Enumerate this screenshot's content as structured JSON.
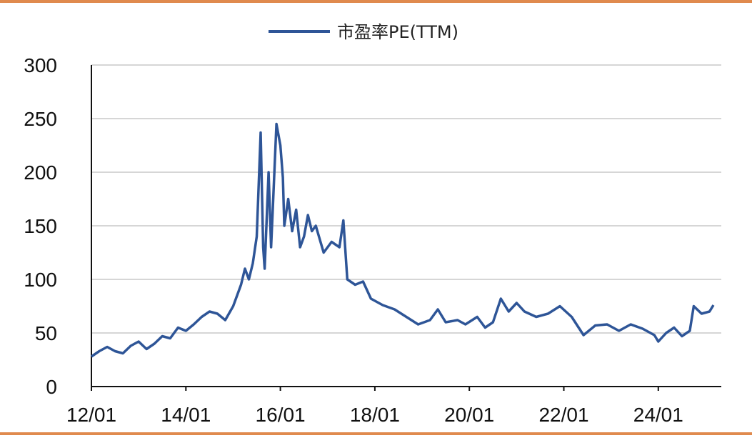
{
  "chart_data": {
    "type": "line",
    "legend": "市盈率PE(TTM)",
    "legend_position": "top-center",
    "series": [
      {
        "name": "市盈率PE(TTM)",
        "color": "#2e5597",
        "points": [
          [
            "2012-01",
            28
          ],
          [
            "2012-03",
            33
          ],
          [
            "2012-05",
            37
          ],
          [
            "2012-07",
            33
          ],
          [
            "2012-09",
            31
          ],
          [
            "2012-11",
            38
          ],
          [
            "2013-01",
            42
          ],
          [
            "2013-03",
            35
          ],
          [
            "2013-05",
            40
          ],
          [
            "2013-07",
            47
          ],
          [
            "2013-09",
            45
          ],
          [
            "2013-11",
            55
          ],
          [
            "2014-01",
            52
          ],
          [
            "2014-03",
            58
          ],
          [
            "2014-05",
            65
          ],
          [
            "2014-07",
            70
          ],
          [
            "2014-09",
            68
          ],
          [
            "2014-11",
            62
          ],
          [
            "2015-01",
            75
          ],
          [
            "2015-03",
            95
          ],
          [
            "2015-04",
            110
          ],
          [
            "2015-05",
            100
          ],
          [
            "2015-06",
            115
          ],
          [
            "2015-07",
            140
          ],
          [
            "2015-08",
            237
          ],
          [
            "2015-08-20",
            130
          ],
          [
            "2015-09",
            110
          ],
          [
            "2015-10",
            200
          ],
          [
            "2015-10-20",
            130
          ],
          [
            "2015-11",
            160
          ],
          [
            "2015-12",
            245
          ],
          [
            "2016-01",
            225
          ],
          [
            "2016-01-20",
            195
          ],
          [
            "2016-02",
            150
          ],
          [
            "2016-03",
            175
          ],
          [
            "2016-04",
            145
          ],
          [
            "2016-05",
            165
          ],
          [
            "2016-06",
            130
          ],
          [
            "2016-07",
            140
          ],
          [
            "2016-08",
            160
          ],
          [
            "2016-09",
            145
          ],
          [
            "2016-10",
            150
          ],
          [
            "2016-12",
            125
          ],
          [
            "2017-02",
            135
          ],
          [
            "2017-04",
            130
          ],
          [
            "2017-05",
            155
          ],
          [
            "2017-06",
            100
          ],
          [
            "2017-08",
            95
          ],
          [
            "2017-10",
            98
          ],
          [
            "2017-12",
            82
          ],
          [
            "2018-03",
            76
          ],
          [
            "2018-06",
            72
          ],
          [
            "2018-09",
            65
          ],
          [
            "2018-12",
            58
          ],
          [
            "2019-03",
            62
          ],
          [
            "2019-05",
            72
          ],
          [
            "2019-07",
            60
          ],
          [
            "2019-10",
            62
          ],
          [
            "2019-12",
            58
          ],
          [
            "2020-03",
            65
          ],
          [
            "2020-05",
            55
          ],
          [
            "2020-07",
            60
          ],
          [
            "2020-09",
            82
          ],
          [
            "2020-11",
            70
          ],
          [
            "2021-01",
            78
          ],
          [
            "2021-03",
            70
          ],
          [
            "2021-06",
            65
          ],
          [
            "2021-09",
            68
          ],
          [
            "2021-12",
            75
          ],
          [
            "2022-03",
            65
          ],
          [
            "2022-06",
            48
          ],
          [
            "2022-09",
            57
          ],
          [
            "2022-12",
            58
          ],
          [
            "2023-03",
            52
          ],
          [
            "2023-06",
            58
          ],
          [
            "2023-09",
            54
          ],
          [
            "2023-12",
            48
          ],
          [
            "2024-01",
            42
          ],
          [
            "2024-03",
            50
          ],
          [
            "2024-05",
            55
          ],
          [
            "2024-07",
            47
          ],
          [
            "2024-09",
            52
          ],
          [
            "2024-10",
            75
          ],
          [
            "2024-12",
            68
          ],
          [
            "2025-02",
            70
          ],
          [
            "2025-03",
            76
          ]
        ]
      }
    ],
    "x_ticks": [
      "12/01",
      "14/01",
      "16/01",
      "18/01",
      "20/01",
      "22/01",
      "24/01"
    ],
    "x_range": [
      "2012-01",
      "2025-05"
    ],
    "ylim": [
      0,
      300
    ],
    "y_ticks": [
      0,
      50,
      100,
      150,
      200,
      250,
      300
    ],
    "grid": "horizontal"
  }
}
